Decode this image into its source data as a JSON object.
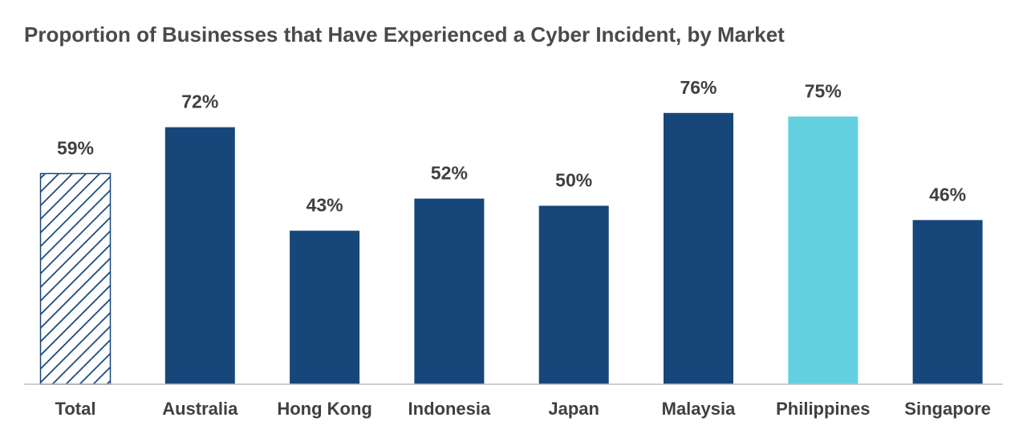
{
  "chart_data": {
    "type": "bar",
    "title": "Proportion of Businesses that Have Experienced a Cyber Incident, by Market",
    "categories": [
      "Total",
      "Australia",
      "Hong Kong",
      "Indonesia",
      "Japan",
      "Malaysia",
      "Philippines",
      "Singapore"
    ],
    "values": [
      59,
      72,
      43,
      52,
      50,
      76,
      75,
      46
    ],
    "value_labels": [
      "59%",
      "72%",
      "43%",
      "52%",
      "50%",
      "76%",
      "75%",
      "46%"
    ],
    "ylim": [
      0,
      80
    ],
    "grid": false,
    "legend": "none",
    "colors": {
      "default_bar": "#17467a",
      "highlight_bar": "#63d0df",
      "total_hatch": "#17467a",
      "axis": "#bfbfbf",
      "text": "#404040"
    },
    "bar_styles": [
      "hatched",
      "solid",
      "solid",
      "solid",
      "solid",
      "solid",
      "highlight",
      "solid"
    ]
  }
}
